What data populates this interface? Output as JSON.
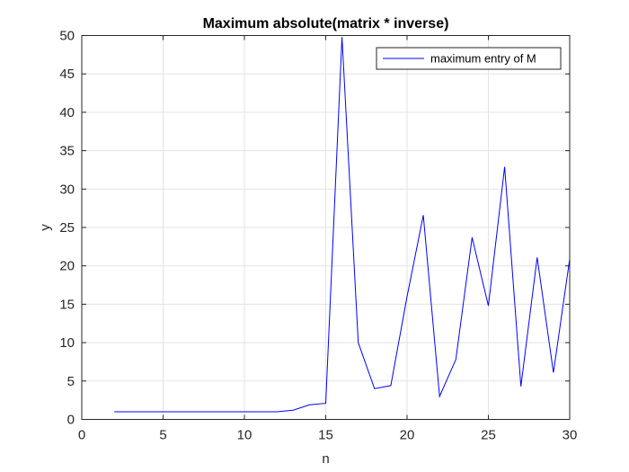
{
  "chart_data": {
    "type": "line",
    "title": "Maximum absolute(matrix * inverse)",
    "xlabel": "n",
    "ylabel": "y",
    "xlim": [
      0,
      30
    ],
    "ylim": [
      0,
      50
    ],
    "xticks": [
      0,
      5,
      10,
      15,
      20,
      25,
      30
    ],
    "yticks": [
      0,
      5,
      10,
      15,
      20,
      25,
      30,
      35,
      40,
      45,
      50
    ],
    "grid": true,
    "legend_position": "top-right",
    "series": [
      {
        "name": "maximum entry of M",
        "color": "#0000ff",
        "x": [
          2,
          3,
          4,
          5,
          6,
          7,
          8,
          9,
          10,
          11,
          12,
          13,
          14,
          15,
          16,
          17,
          18,
          19,
          20,
          21,
          22,
          23,
          24,
          25,
          26,
          27,
          28,
          29,
          30
        ],
        "y": [
          1,
          1,
          1,
          1,
          1,
          1,
          1,
          1,
          1,
          1,
          1,
          1.2,
          1.9,
          2.1,
          49.8,
          10.0,
          4.0,
          4.4,
          16.0,
          26.6,
          3.0,
          7.8,
          23.7,
          14.8,
          32.9,
          4.3,
          21.1,
          6.1,
          20.9
        ]
      }
    ]
  }
}
